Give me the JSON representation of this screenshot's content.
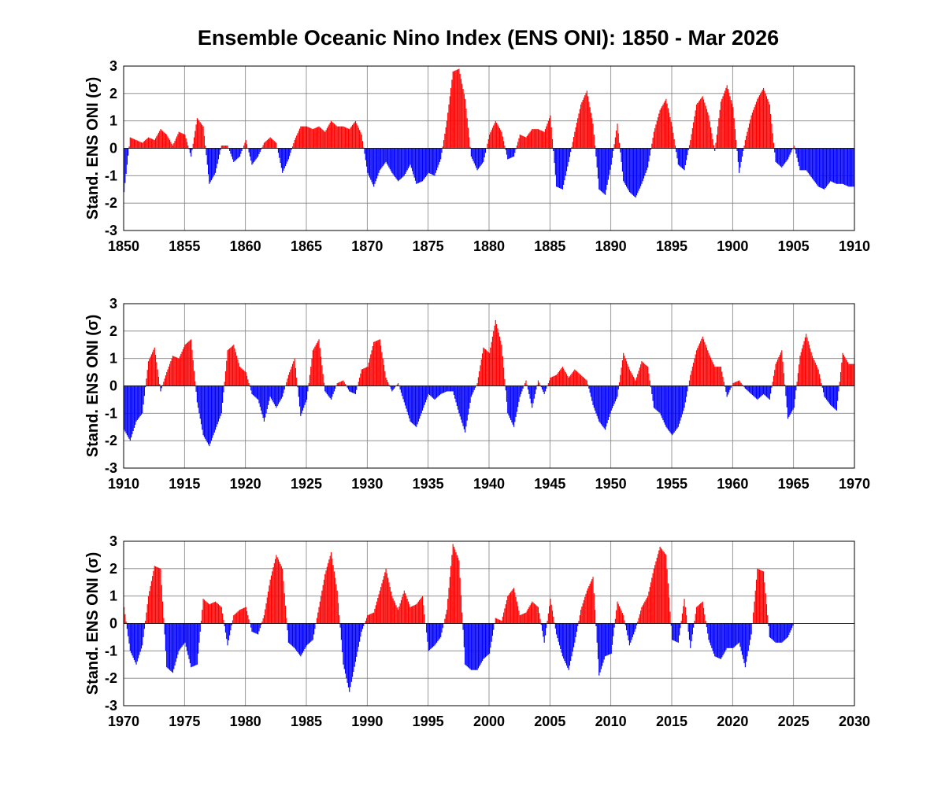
{
  "title": "Ensemble Oceanic Nino Index (ENS ONI): 1850 - Mar 2026",
  "colors": {
    "positive": "#ff0000",
    "negative": "#0000ff",
    "grid": "#808080",
    "axis": "#000000"
  },
  "chart_data": [
    {
      "type": "bar",
      "ylabel": "Stand. ENS ONI (σ)",
      "xlim": [
        1850,
        1910
      ],
      "ylim": [
        -3,
        3
      ],
      "xticks": [
        "1850",
        "1855",
        "1860",
        "1865",
        "1870",
        "1875",
        "1880",
        "1885",
        "1890",
        "1895",
        "1900",
        "1905",
        "1910"
      ],
      "yticks": [
        "-3",
        "-2",
        "-1",
        "0",
        "1",
        "2",
        "3"
      ],
      "grid": true,
      "x": [
        1850.0,
        1850.5,
        1851.0,
        1851.5,
        1852.0,
        1852.5,
        1853.0,
        1853.5,
        1854.0,
        1854.5,
        1855.0,
        1855.5,
        1856.0,
        1856.5,
        1857.0,
        1857.5,
        1858.0,
        1858.5,
        1859.0,
        1859.5,
        1860.0,
        1860.5,
        1861.0,
        1861.5,
        1862.0,
        1862.5,
        1863.0,
        1863.5,
        1864.0,
        1864.5,
        1865.0,
        1865.5,
        1866.0,
        1866.5,
        1867.0,
        1867.5,
        1868.0,
        1868.5,
        1869.0,
        1869.5,
        1870.0,
        1870.5,
        1871.0,
        1871.5,
        1872.0,
        1872.5,
        1873.0,
        1873.5,
        1874.0,
        1874.5,
        1875.0,
        1875.5,
        1876.0,
        1876.5,
        1877.0,
        1877.5,
        1878.0,
        1878.5,
        1879.0,
        1879.5,
        1880.0,
        1880.5,
        1881.0,
        1881.5,
        1882.0,
        1882.5,
        1883.0,
        1883.5,
        1884.0,
        1884.5,
        1885.0,
        1885.5,
        1886.0,
        1886.5,
        1887.0,
        1887.5,
        1888.0,
        1888.5,
        1889.0,
        1889.5,
        1890.0,
        1890.5,
        1891.0,
        1891.5,
        1892.0,
        1892.5,
        1893.0,
        1893.5,
        1894.0,
        1894.5,
        1895.0,
        1895.5,
        1896.0,
        1896.5,
        1897.0,
        1897.5,
        1898.0,
        1898.5,
        1899.0,
        1899.5,
        1900.0,
        1900.5,
        1901.0,
        1901.5,
        1902.0,
        1902.5,
        1903.0,
        1903.5,
        1904.0,
        1904.5,
        1905.0,
        1905.5,
        1906.0,
        1906.5,
        1907.0,
        1907.5,
        1908.0,
        1908.5,
        1909.0,
        1909.5
      ],
      "values": [
        -1.6,
        0.4,
        0.3,
        0.2,
        0.4,
        0.3,
        0.7,
        0.5,
        0.1,
        0.6,
        0.5,
        -0.3,
        1.1,
        0.8,
        -1.3,
        -0.9,
        0.1,
        0.1,
        -0.5,
        -0.3,
        0.3,
        -0.6,
        -0.3,
        0.2,
        0.4,
        0.2,
        -0.9,
        -0.4,
        0.3,
        0.8,
        0.8,
        0.7,
        0.8,
        0.6,
        1.0,
        0.8,
        0.8,
        0.7,
        1.0,
        0.5,
        -0.9,
        -1.4,
        -0.8,
        -0.5,
        -0.9,
        -1.2,
        -1.0,
        -0.6,
        -1.3,
        -1.2,
        -0.9,
        -1.0,
        -0.4,
        1.0,
        2.8,
        2.9,
        1.8,
        -0.3,
        -0.8,
        -0.5,
        0.5,
        1.0,
        0.6,
        -0.4,
        -0.3,
        0.5,
        0.4,
        0.7,
        0.7,
        0.6,
        1.2,
        -1.4,
        -1.5,
        -0.5,
        0.6,
        1.6,
        2.1,
        0.9,
        -1.5,
        -1.7,
        -0.6,
        0.9,
        -1.2,
        -1.6,
        -1.8,
        -1.3,
        -0.7,
        0.6,
        1.4,
        1.8,
        0.8,
        -0.6,
        -0.8,
        0.3,
        1.6,
        1.9,
        1.2,
        -0.1,
        1.7,
        2.3,
        1.5,
        -0.9,
        0.3,
        1.2,
        1.8,
        2.2,
        1.6,
        -0.5,
        -0.7,
        -0.4,
        0.1,
        -0.8,
        -0.8,
        -1.1,
        -1.4,
        -1.5,
        -1.2,
        -1.3,
        -1.3,
        -1.4
      ]
    },
    {
      "type": "bar",
      "ylabel": "Stand. ENS ONI (σ)",
      "xlim": [
        1910,
        1970
      ],
      "ylim": [
        -3,
        3
      ],
      "xticks": [
        "1910",
        "1915",
        "1920",
        "1925",
        "1930",
        "1935",
        "1940",
        "1945",
        "1950",
        "1955",
        "1960",
        "1965",
        "1970"
      ],
      "yticks": [
        "-3",
        "-2",
        "-1",
        "0",
        "1",
        "2",
        "3"
      ],
      "grid": true,
      "x": [
        1910.0,
        1910.5,
        1911.0,
        1911.5,
        1912.0,
        1912.5,
        1913.0,
        1913.5,
        1914.0,
        1914.5,
        1915.0,
        1915.5,
        1916.0,
        1916.5,
        1917.0,
        1917.5,
        1918.0,
        1918.5,
        1919.0,
        1919.5,
        1920.0,
        1920.5,
        1921.0,
        1921.5,
        1922.0,
        1922.5,
        1923.0,
        1923.5,
        1924.0,
        1924.5,
        1925.0,
        1925.5,
        1926.0,
        1926.5,
        1927.0,
        1927.5,
        1928.0,
        1928.5,
        1929.0,
        1929.5,
        1930.0,
        1930.5,
        1931.0,
        1931.5,
        1932.0,
        1932.5,
        1933.0,
        1933.5,
        1934.0,
        1934.5,
        1935.0,
        1935.5,
        1936.0,
        1936.5,
        1937.0,
        1937.5,
        1938.0,
        1938.5,
        1939.0,
        1939.5,
        1940.0,
        1940.5,
        1941.0,
        1941.5,
        1942.0,
        1942.5,
        1943.0,
        1943.5,
        1944.0,
        1944.5,
        1945.0,
        1945.5,
        1946.0,
        1946.5,
        1947.0,
        1947.5,
        1948.0,
        1948.5,
        1949.0,
        1949.5,
        1950.0,
        1950.5,
        1951.0,
        1951.5,
        1952.0,
        1952.5,
        1953.0,
        1953.5,
        1954.0,
        1954.5,
        1955.0,
        1955.5,
        1956.0,
        1956.5,
        1957.0,
        1957.5,
        1958.0,
        1958.5,
        1959.0,
        1959.5,
        1960.0,
        1960.5,
        1961.0,
        1961.5,
        1962.0,
        1962.5,
        1963.0,
        1963.5,
        1964.0,
        1964.5,
        1965.0,
        1965.5,
        1966.0,
        1966.5,
        1967.0,
        1967.5,
        1968.0,
        1968.5,
        1969.0,
        1969.5
      ],
      "values": [
        -1.6,
        -2.0,
        -1.3,
        -1.0,
        0.9,
        1.4,
        -0.2,
        0.5,
        1.1,
        1.0,
        1.5,
        1.7,
        -0.6,
        -1.8,
        -2.2,
        -1.6,
        -1.0,
        1.3,
        1.5,
        0.7,
        0.5,
        -0.3,
        -0.5,
        -1.3,
        -0.4,
        -0.8,
        -0.4,
        0.4,
        1.0,
        -1.1,
        -0.5,
        1.3,
        1.7,
        -0.2,
        -0.5,
        0.1,
        0.2,
        -0.2,
        -0.3,
        0.6,
        0.7,
        1.6,
        1.7,
        0.3,
        -0.2,
        0.1,
        -0.6,
        -1.3,
        -1.5,
        -0.9,
        -0.3,
        -0.5,
        -0.3,
        -0.2,
        -0.2,
        -1.0,
        -1.7,
        -0.4,
        0.1,
        1.4,
        1.2,
        2.4,
        1.5,
        -1.0,
        -1.5,
        -0.4,
        0.2,
        -0.8,
        0.2,
        -0.3,
        0.3,
        0.4,
        0.7,
        0.3,
        0.6,
        0.4,
        0.2,
        -0.7,
        -1.3,
        -1.6,
        -0.9,
        -0.4,
        1.2,
        0.6,
        0.2,
        0.9,
        0.7,
        -0.8,
        -1.0,
        -1.5,
        -1.8,
        -1.5,
        -0.8,
        0.4,
        1.3,
        1.8,
        1.2,
        0.7,
        0.7,
        -0.4,
        0.1,
        0.2,
        -0.1,
        -0.3,
        -0.5,
        -0.3,
        -0.5,
        0.8,
        1.3,
        -1.2,
        -0.8,
        1.1,
        1.9,
        1.1,
        0.6,
        -0.4,
        -0.7,
        -0.9,
        1.2,
        0.8
      ]
    },
    {
      "type": "bar",
      "ylabel": "Stand. ENS ONI (σ)",
      "xlim": [
        1970,
        2030
      ],
      "ylim": [
        -3,
        3
      ],
      "xticks": [
        "1970",
        "1975",
        "1980",
        "1985",
        "1990",
        "1995",
        "2000",
        "2005",
        "2010",
        "2015",
        "2020",
        "2025",
        "2030"
      ],
      "yticks": [
        "-3",
        "-2",
        "-1",
        "0",
        "1",
        "2",
        "3"
      ],
      "grid": true,
      "x": [
        1970.0,
        1970.5,
        1971.0,
        1971.5,
        1972.0,
        1972.5,
        1973.0,
        1973.5,
        1974.0,
        1974.5,
        1975.0,
        1975.5,
        1976.0,
        1976.5,
        1977.0,
        1977.5,
        1978.0,
        1978.5,
        1979.0,
        1979.5,
        1980.0,
        1980.5,
        1981.0,
        1981.5,
        1982.0,
        1982.5,
        1983.0,
        1983.5,
        1984.0,
        1984.5,
        1985.0,
        1985.5,
        1986.0,
        1986.5,
        1987.0,
        1987.5,
        1988.0,
        1988.5,
        1989.0,
        1989.5,
        1990.0,
        1990.5,
        1991.0,
        1991.5,
        1992.0,
        1992.5,
        1993.0,
        1993.5,
        1994.0,
        1994.5,
        1995.0,
        1995.5,
        1996.0,
        1996.5,
        1997.0,
        1997.5,
        1998.0,
        1998.5,
        1999.0,
        1999.5,
        2000.0,
        2000.5,
        2001.0,
        2001.5,
        2002.0,
        2002.5,
        2003.0,
        2003.5,
        2004.0,
        2004.5,
        2005.0,
        2005.5,
        2006.0,
        2006.5,
        2007.0,
        2007.5,
        2008.0,
        2008.5,
        2009.0,
        2009.5,
        2010.0,
        2010.5,
        2011.0,
        2011.5,
        2012.0,
        2012.5,
        2013.0,
        2013.5,
        2014.0,
        2014.5,
        2015.0,
        2015.5,
        2016.0,
        2016.5,
        2017.0,
        2017.5,
        2018.0,
        2018.5,
        2019.0,
        2019.5,
        2020.0,
        2020.5,
        2021.0,
        2021.5,
        2022.0,
        2022.5,
        2023.0,
        2023.5,
        2024.0,
        2024.5,
        2025.0,
        2025.5,
        2026.0
      ],
      "values": [
        0.6,
        -1.0,
        -1.5,
        -0.8,
        1.0,
        2.1,
        2.0,
        -1.6,
        -1.8,
        -1.0,
        -0.7,
        -1.6,
        -1.5,
        0.9,
        0.7,
        0.8,
        0.6,
        -0.8,
        0.3,
        0.5,
        0.6,
        -0.3,
        -0.4,
        0.3,
        1.6,
        2.5,
        2.0,
        -0.7,
        -0.9,
        -1.2,
        -0.8,
        -0.6,
        0.6,
        1.8,
        2.6,
        1.2,
        -1.5,
        -2.5,
        -1.4,
        -0.3,
        0.3,
        0.4,
        1.2,
        2.0,
        1.0,
        0.5,
        1.2,
        0.6,
        0.7,
        1.0,
        -1.0,
        -0.8,
        -0.5,
        0.5,
        2.9,
        2.3,
        -1.5,
        -1.7,
        -1.7,
        -1.3,
        -1.1,
        0.2,
        0.1,
        1.0,
        1.3,
        0.3,
        0.4,
        0.8,
        0.6,
        -0.7,
        0.9,
        -0.4,
        -1.2,
        -1.7,
        -0.7,
        0.5,
        1.2,
        1.7,
        -1.9,
        -1.2,
        -1.1,
        0.8,
        0.3,
        -0.8,
        -0.2,
        0.6,
        1.0,
        2.0,
        2.8,
        2.5,
        -0.6,
        -0.7,
        0.9,
        -0.9,
        0.6,
        0.8,
        -0.6,
        -1.2,
        -1.3,
        -0.9,
        -0.9,
        -0.7,
        -1.6,
        -0.4,
        2.0,
        1.9,
        -0.5,
        -0.7,
        -0.7,
        -0.5,
        0,
        0,
        0
      ]
    }
  ]
}
